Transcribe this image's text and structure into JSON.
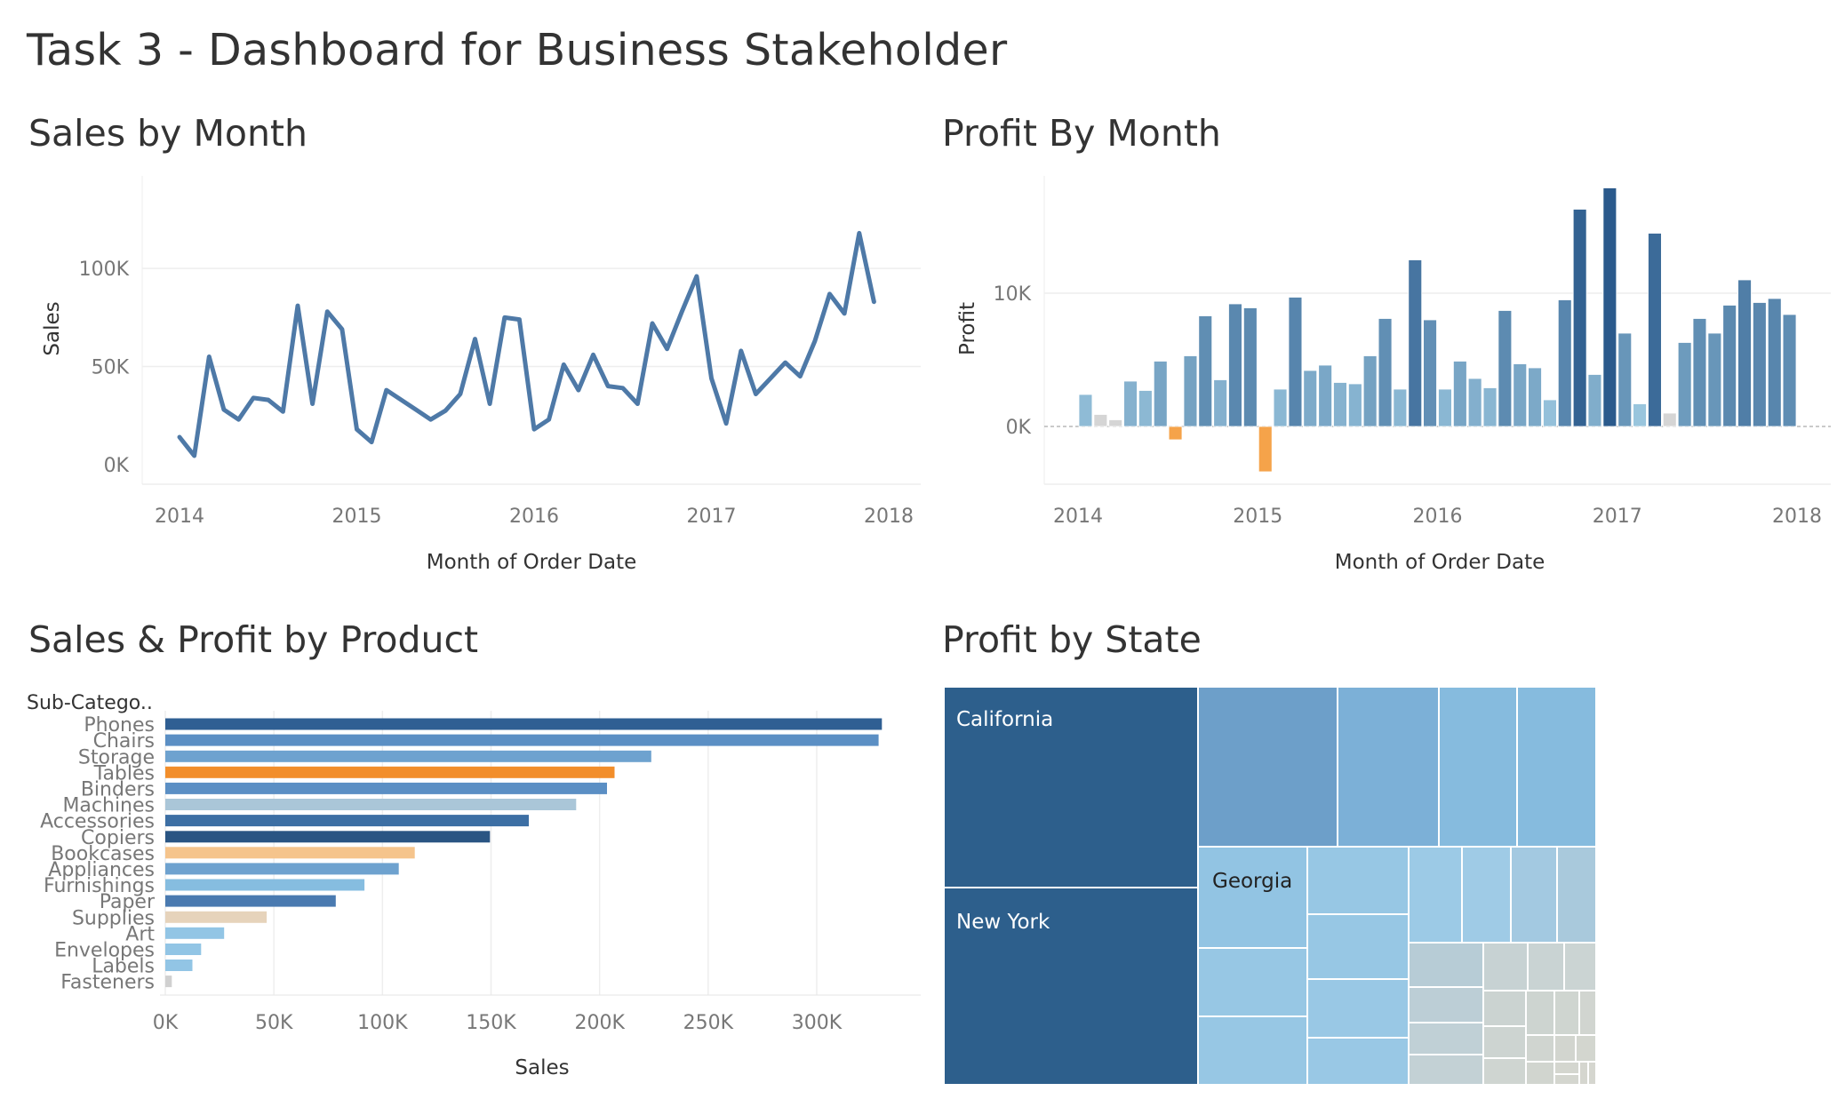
{
  "dashboard": {
    "title": "Task 3 -  Dashboard for Business Stakeholder"
  },
  "sheets": {
    "sales_by_month": "Sales by Month",
    "profit_by_month": "Profit By Month",
    "sales_profit_by_product": "Sales & Profit by Product",
    "profit_by_state": "Profit by State"
  },
  "chart_data": [
    {
      "id": "sales_by_month",
      "type": "line",
      "title": "Sales by Month",
      "xlabel": "Month of Order Date",
      "ylabel": "Sales",
      "x_ticks": [
        "2014",
        "2015",
        "2016",
        "2017",
        "2018"
      ],
      "y_ticks": [
        {
          "value": 0,
          "label": "0K"
        },
        {
          "value": 50000,
          "label": "50K"
        },
        {
          "value": 100000,
          "label": "100K"
        }
      ],
      "ylim": [
        -5000,
        120000
      ],
      "grid": true,
      "color": "#4e79a7",
      "x_start": "2014-01",
      "x_end": "2018-01",
      "series": [
        {
          "values": [
            14000,
            4500,
            55000,
            28000,
            23000,
            34000,
            33000,
            27000,
            81000,
            31000,
            78000,
            69000,
            18000,
            11500,
            38000,
            33000,
            28000,
            23000,
            27500,
            36000,
            64000,
            31000,
            75000,
            74000,
            18000,
            23000,
            51000,
            38000,
            56000,
            40000,
            39000,
            31000,
            72000,
            59000,
            78000,
            96000,
            44000,
            21000,
            58000,
            36000,
            44000,
            52000,
            45000,
            63000,
            87000,
            77000,
            118000,
            83000
          ]
        }
      ]
    },
    {
      "id": "profit_by_month",
      "type": "bar",
      "title": "Profit By Month",
      "xlabel": "Month of Order Date",
      "ylabel": "Profit",
      "x_ticks": [
        "2014",
        "2015",
        "2016",
        "2017",
        "2018"
      ],
      "y_ticks": [
        {
          "value": 0,
          "label": "0K"
        },
        {
          "value": 10000,
          "label": "10K"
        }
      ],
      "ylim": [
        -4500,
        19000
      ],
      "grid": true,
      "x_start": "2014-01",
      "x_end": "2018-01",
      "color_scale": {
        "negative": "#f5a34a",
        "neutral": "#d5d5d5",
        "light": "#9ecae1",
        "dark": "#2b5a8c"
      },
      "values": [
        2400,
        900,
        500,
        3400,
        2700,
        4900,
        -1000,
        5300,
        8300,
        3500,
        9200,
        8900,
        -3400,
        2800,
        9700,
        4200,
        4600,
        3300,
        3200,
        5300,
        8100,
        2800,
        12500,
        8000,
        2800,
        4900,
        3600,
        2900,
        8700,
        4700,
        4400,
        2000,
        9500,
        16300,
        3900,
        17900,
        7000,
        1700,
        14500,
        1000,
        6300,
        8100,
        7000,
        9100,
        11000,
        9300,
        9600,
        8400
      ]
    },
    {
      "id": "sales_profit_by_product",
      "type": "bar",
      "orientation": "horizontal",
      "title": "Sales & Profit by Product",
      "xlabel": "Sales",
      "ylabel": "Sub-Catego..",
      "x_ticks": [
        {
          "value": 0,
          "label": "0K"
        },
        {
          "value": 50000,
          "label": "50K"
        },
        {
          "value": 100000,
          "label": "100K"
        },
        {
          "value": 150000,
          "label": "150K"
        },
        {
          "value": 200000,
          "label": "200K"
        },
        {
          "value": 250000,
          "label": "250K"
        },
        {
          "value": 300000,
          "label": "300K"
        }
      ],
      "xlim": [
        0,
        345000
      ],
      "grid": true,
      "categories": [
        "Phones",
        "Chairs",
        "Storage",
        "Tables",
        "Binders",
        "Machines",
        "Accessories",
        "Copiers",
        "Bookcases",
        "Appliances",
        "Furnishings",
        "Paper",
        "Supplies",
        "Art",
        "Envelopes",
        "Labels",
        "Fasteners"
      ],
      "values": [
        330000,
        328500,
        223800,
        206900,
        203400,
        189200,
        167400,
        149500,
        114900,
        107500,
        91700,
        78500,
        46700,
        27100,
        16500,
        12500,
        3000
      ],
      "colors": [
        "#2f5f93",
        "#5b8fc4",
        "#6ea2cf",
        "#f28e2b",
        "#5b8fc4",
        "#aac6d8",
        "#3d6fa4",
        "#2a5583",
        "#f5c48c",
        "#6ea2cf",
        "#86bde0",
        "#4a7ab0",
        "#e6d3bb",
        "#92c5e5",
        "#92c5e5",
        "#92c5e5",
        "#d0d0d0"
      ]
    },
    {
      "id": "profit_by_state",
      "type": "treemap",
      "title": "Profit by State",
      "labels": [
        "California",
        "New York",
        "Georgia"
      ]
    }
  ]
}
